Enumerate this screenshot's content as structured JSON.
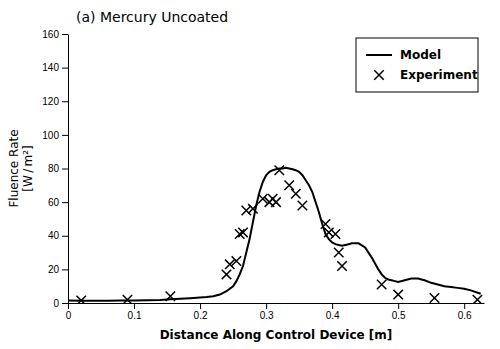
{
  "chart_data": {
    "type": "line",
    "title": "(a) Mercury Uncoated",
    "xlabel": "Distance Along Control Device [m]",
    "ylabel": "Fluence Rate\n[W / m²]",
    "xlim": [
      0,
      0.63
    ],
    "ylim": [
      0,
      160
    ],
    "xticks": [
      0,
      0.1,
      0.2,
      0.3,
      0.4,
      0.5,
      0.6
    ],
    "yticks": [
      0,
      20,
      40,
      60,
      80,
      100,
      120,
      140,
      160
    ],
    "grid": false,
    "legend": "upper right",
    "series": [
      {
        "name": "Model",
        "type": "line",
        "color": "#000000",
        "x": [
          0.0,
          0.02,
          0.04,
          0.06,
          0.08,
          0.1,
          0.12,
          0.14,
          0.155,
          0.17,
          0.185,
          0.2,
          0.21,
          0.22,
          0.23,
          0.24,
          0.245,
          0.25,
          0.255,
          0.26,
          0.265,
          0.27,
          0.275,
          0.28,
          0.285,
          0.29,
          0.295,
          0.3,
          0.305,
          0.31,
          0.315,
          0.32,
          0.325,
          0.33,
          0.335,
          0.34,
          0.345,
          0.35,
          0.355,
          0.36,
          0.365,
          0.37,
          0.375,
          0.38,
          0.385,
          0.39,
          0.395,
          0.4,
          0.405,
          0.41,
          0.415,
          0.42,
          0.425,
          0.43,
          0.44,
          0.45,
          0.46,
          0.47,
          0.475,
          0.48,
          0.485,
          0.49,
          0.495,
          0.5,
          0.51,
          0.52,
          0.53,
          0.54,
          0.55,
          0.56,
          0.57,
          0.58,
          0.59,
          0.6,
          0.61,
          0.625
        ],
        "values": [
          1.5,
          1.4,
          1.4,
          1.4,
          1.5,
          1.5,
          1.6,
          1.8,
          2.2,
          2.5,
          2.8,
          3.2,
          3.5,
          4.0,
          5.0,
          7.0,
          8.5,
          10.0,
          13.0,
          17.0,
          22.0,
          30.0,
          38.0,
          48.0,
          58.0,
          66.0,
          72.0,
          76.0,
          78.0,
          79.0,
          79.5,
          80.0,
          80.0,
          80.5,
          80.0,
          79.5,
          79.0,
          78.0,
          76.0,
          73.0,
          70.0,
          66.0,
          60.0,
          54.0,
          47.0,
          41.0,
          38.0,
          36.0,
          35.0,
          34.5,
          34.0,
          34.5,
          35.0,
          35.5,
          35.5,
          33.0,
          27.0,
          20.0,
          17.0,
          15.0,
          14.0,
          13.5,
          13.0,
          12.5,
          13.5,
          14.5,
          14.5,
          13.5,
          12.0,
          11.0,
          10.0,
          9.5,
          9.0,
          8.5,
          7.5,
          5.5
        ]
      },
      {
        "name": "Experiment",
        "type": "scatter",
        "marker": "x",
        "color": "#000000",
        "x": [
          0.02,
          0.09,
          0.155,
          0.24,
          0.245,
          0.255,
          0.26,
          0.265,
          0.27,
          0.28,
          0.295,
          0.305,
          0.31,
          0.315,
          0.32,
          0.335,
          0.345,
          0.355,
          0.39,
          0.395,
          0.405,
          0.41,
          0.415,
          0.475,
          0.5,
          0.555,
          0.62
        ],
        "values": [
          1.5,
          2.0,
          4.0,
          17.0,
          23.0,
          25.0,
          41.0,
          42.0,
          55.0,
          56.0,
          62.0,
          60.0,
          62.0,
          60.0,
          79.0,
          70.0,
          65.0,
          58.0,
          47.0,
          42.0,
          41.0,
          30.0,
          22.0,
          11.0,
          5.0,
          3.0,
          2.0
        ]
      }
    ]
  }
}
